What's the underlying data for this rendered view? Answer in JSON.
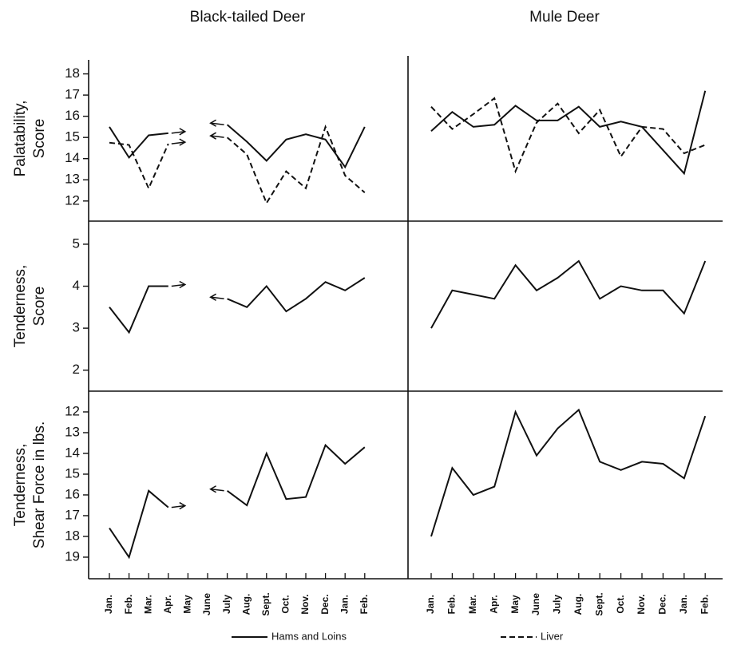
{
  "chart_data": [
    {
      "type": "line",
      "title": "Black-tailed Deer",
      "categories": [
        "Jan.",
        "Feb.",
        "Mar.",
        "Apr.",
        "May",
        "June",
        "July",
        "Aug.",
        "Sept.",
        "Oct.",
        "Nov.",
        "Dec.",
        "Jan.",
        "Feb."
      ],
      "panels": [
        {
          "ylabel": [
            "Palatability,",
            "Score"
          ],
          "ylim": [
            11.05,
            18.85
          ],
          "yticks": [
            12,
            13,
            14,
            15,
            16,
            17,
            18
          ],
          "series": [
            {
              "style": "solid",
              "values": [
                15.5,
                14.05,
                15.1,
                15.2,
                null,
                null,
                15.6,
                14.8,
                13.9,
                14.9,
                15.15,
                14.9,
                13.6,
                15.5
              ]
            },
            {
              "style": "dashed",
              "values": [
                14.75,
                14.65,
                12.6,
                14.7,
                null,
                null,
                15.0,
                14.2,
                11.9,
                13.4,
                12.6,
                15.5,
                13.2,
                12.4
              ]
            }
          ]
        },
        {
          "ylabel": [
            "Tenderness,",
            "Score"
          ],
          "ylim": [
            1.5,
            5.55
          ],
          "yticks": [
            2,
            3,
            4,
            5
          ],
          "series": [
            {
              "style": "solid",
              "values": [
                3.5,
                2.9,
                4.0,
                4.0,
                null,
                null,
                3.7,
                3.5,
                4.0,
                3.4,
                3.7,
                4.1,
                3.9,
                4.2
              ]
            }
          ]
        },
        {
          "ylabel": [
            "Tenderness,",
            "Shear Force in lbs."
          ],
          "ylim": [
            20.04,
            11
          ],
          "yticks": [
            12,
            13,
            14,
            15,
            16,
            17,
            18,
            19
          ],
          "series": [
            {
              "style": "solid",
              "values": [
                17.6,
                19.0,
                15.8,
                16.6,
                null,
                null,
                15.8,
                16.5,
                14.0,
                16.2,
                16.1,
                13.6,
                14.5,
                13.7
              ]
            }
          ]
        }
      ]
    },
    {
      "type": "line",
      "title": "Mule Deer",
      "categories": [
        "Jan.",
        "Feb.",
        "Mar.",
        "Apr.",
        "May",
        "June",
        "July",
        "Aug.",
        "Sept.",
        "Oct.",
        "Nov.",
        "Dec.",
        "Jan.",
        "Feb."
      ],
      "panels": [
        {
          "ylim": [
            11.05,
            18.85
          ],
          "series": [
            {
              "style": "solid",
              "values": [
                15.3,
                16.2,
                15.5,
                15.6,
                16.5,
                15.8,
                15.8,
                16.45,
                15.5,
                15.75,
                15.5,
                14.4,
                13.3,
                17.2
              ]
            },
            {
              "style": "dashed",
              "values": [
                16.45,
                15.4,
                16.1,
                16.85,
                13.4,
                15.7,
                16.6,
                15.2,
                16.3,
                14.1,
                15.5,
                15.4,
                14.25,
                14.65
              ]
            }
          ]
        },
        {
          "ylim": [
            1.5,
            5.55
          ],
          "series": [
            {
              "style": "solid",
              "values": [
                3.0,
                3.9,
                3.8,
                3.7,
                4.5,
                3.9,
                4.2,
                4.6,
                3.7,
                4.0,
                3.9,
                3.9,
                3.35,
                4.6
              ]
            }
          ]
        },
        {
          "ylim": [
            20.04,
            11
          ],
          "series": [
            {
              "style": "solid",
              "values": [
                18.0,
                14.7,
                16.0,
                15.6,
                12.0,
                14.1,
                12.8,
                11.9,
                14.4,
                14.8,
                14.4,
                14.5,
                15.2,
                12.2
              ]
            }
          ]
        }
      ]
    }
  ],
  "legend": [
    {
      "name": "Hams and Loins",
      "style": "solid"
    },
    {
      "name": "Liver",
      "style": "dashed"
    }
  ]
}
